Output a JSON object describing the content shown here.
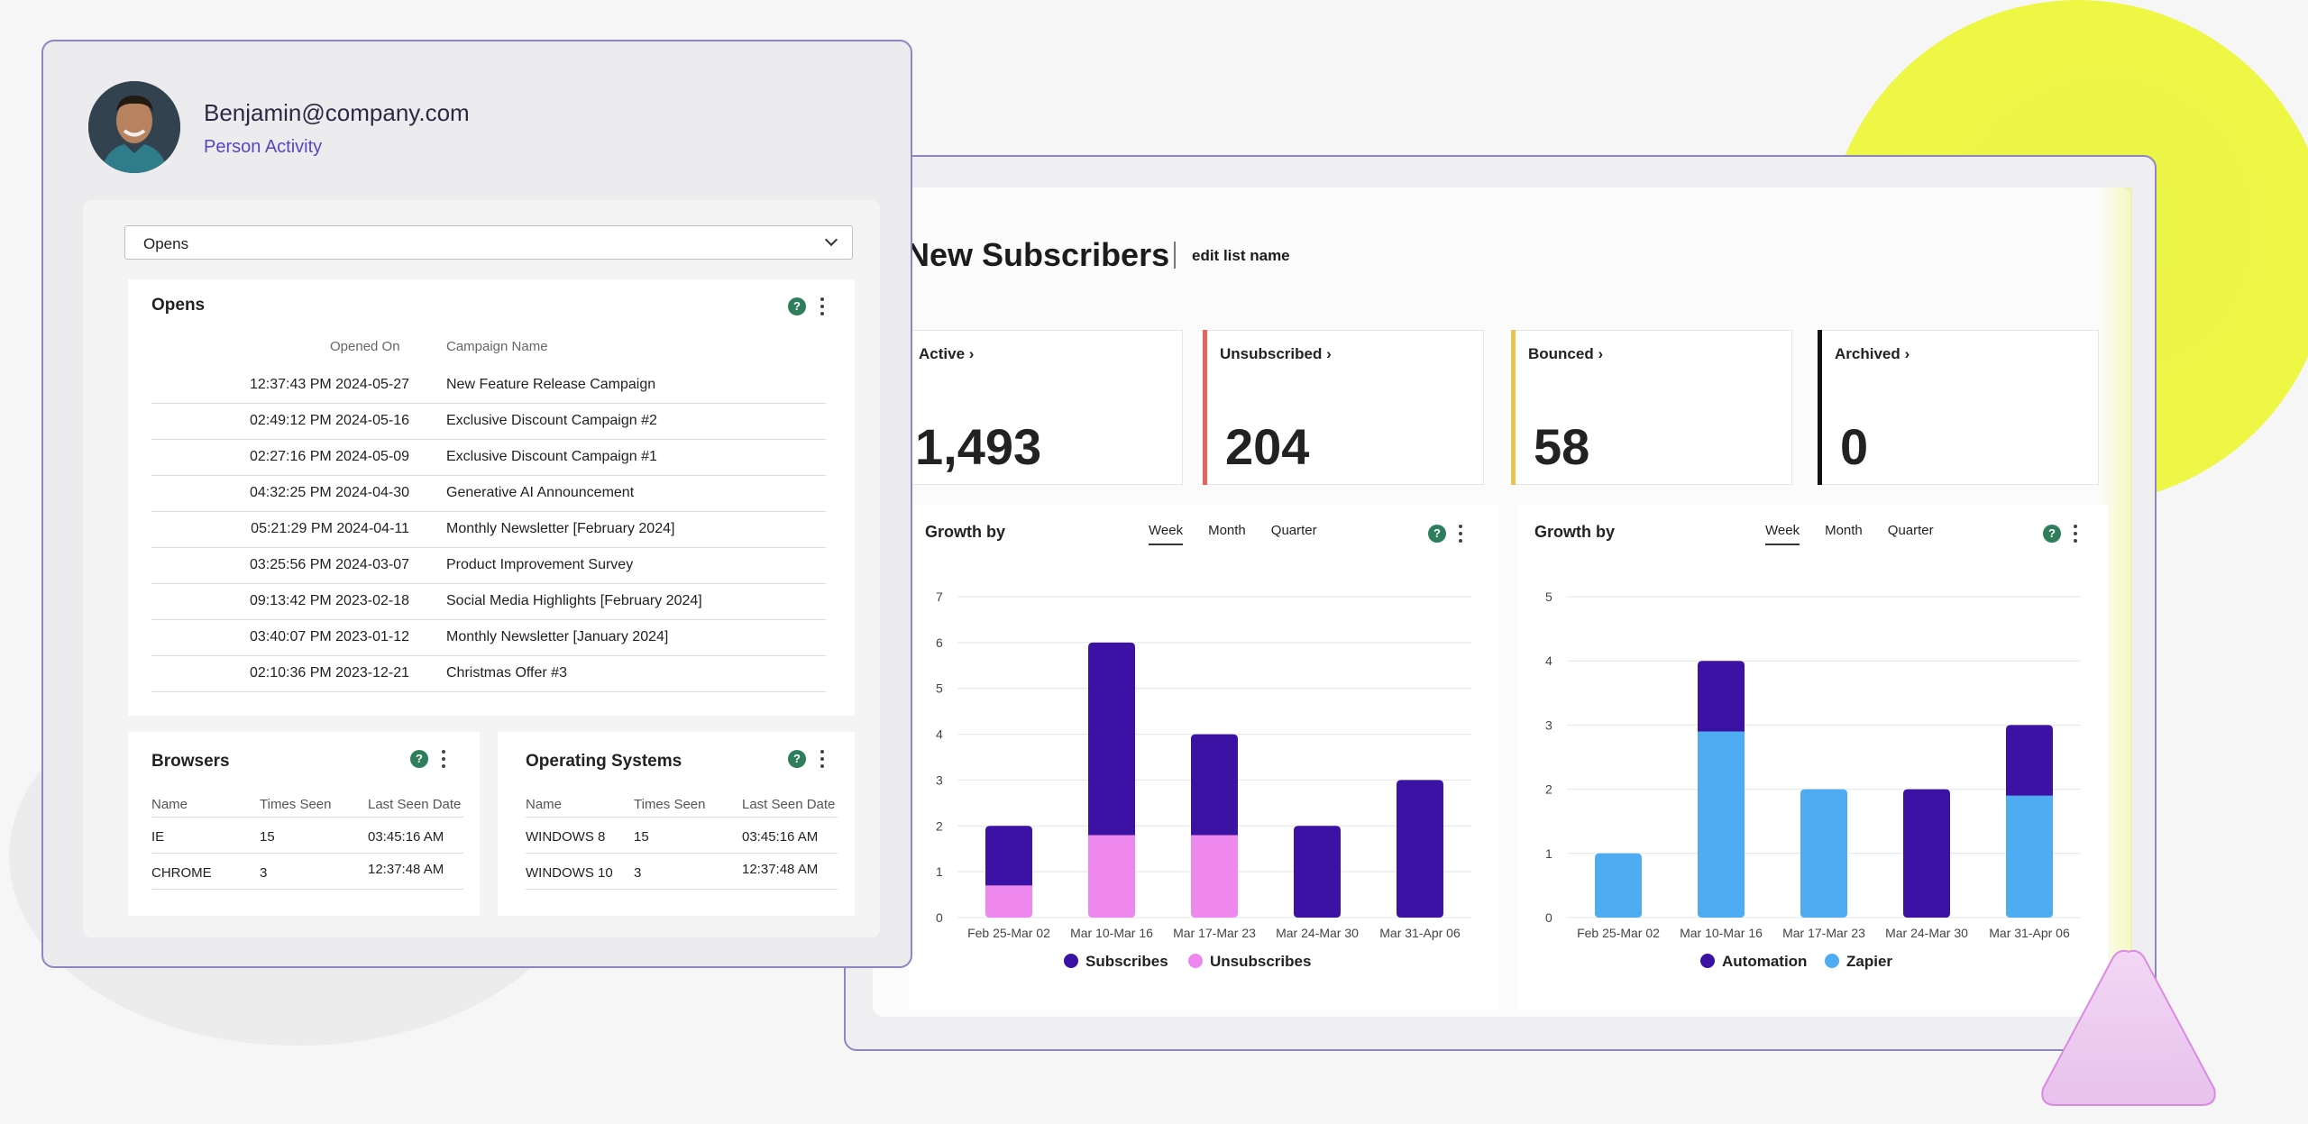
{
  "person": {
    "email": "Benjamin@company.com",
    "subtitle": "Person Activity"
  },
  "filter": {
    "selected": "Opens"
  },
  "opens": {
    "title": "Opens",
    "columns": [
      "Opened On",
      "Campaign Name"
    ],
    "rows": [
      [
        "12:37:43 PM 2024-05-27",
        "New Feature Release Campaign"
      ],
      [
        "02:49:12 PM 2024-05-16",
        "Exclusive Discount Campaign #2"
      ],
      [
        "02:27:16 PM 2024-05-09",
        "Exclusive Discount Campaign #1"
      ],
      [
        "04:32:25 PM 2024-04-30",
        "Generative AI Announcement"
      ],
      [
        "05:21:29 PM 2024-04-11",
        "Monthly Newsletter [February 2024]"
      ],
      [
        "03:25:56 PM 2024-03-07",
        "Product Improvement Survey"
      ],
      [
        "09:13:42 PM 2023-02-18",
        "Social Media Highlights [February 2024]"
      ],
      [
        "03:40:07 PM 2023-01-12",
        "Monthly Newsletter [January 2024]"
      ],
      [
        "02:10:36 PM 2023-12-21",
        "Christmas Offer #3"
      ]
    ]
  },
  "browsers": {
    "title": "Browsers",
    "columns": [
      "Name",
      "Times Seen",
      "Last Seen Date"
    ],
    "rows": [
      [
        "IE",
        "15",
        "03:45:16 AM"
      ],
      [
        "CHROME",
        "3",
        "12:37:48 AM"
      ]
    ]
  },
  "os": {
    "title": "Operating Systems",
    "columns": [
      "Name",
      "Times Seen",
      "Last Seen Date"
    ],
    "rows": [
      [
        "WINDOWS 8",
        "15",
        "03:45:16 AM"
      ],
      [
        "WINDOWS 10",
        "3",
        "12:37:48 AM"
      ]
    ]
  },
  "list": {
    "title": "New Subscribers",
    "edit_label": "edit list name",
    "stats": [
      {
        "label": "Active",
        "value": "1,493",
        "color": ""
      },
      {
        "label": "Unsubscribed",
        "value": "204",
        "color": "#e0675d"
      },
      {
        "label": "Bounced",
        "value": "58",
        "color": "#e8c452"
      },
      {
        "label": "Archived",
        "value": "0",
        "color": "#111111"
      }
    ]
  },
  "colors": {
    "subscribes": "#3b12a3",
    "unsubscribes": "#ee88ee",
    "automation": "#3b12a3",
    "zapier": "#4eacf2",
    "help": "#2e7d5b"
  },
  "chart_data": [
    {
      "type": "bar",
      "title": "Growth by",
      "tabs": [
        "Week",
        "Month",
        "Quarter"
      ],
      "active_tab": "Week",
      "stacked": true,
      "categories": [
        "Feb 25-Mar 02",
        "Mar 10-Mar 16",
        "Mar 17-Mar 23",
        "Mar 24-Mar 30",
        "Mar 31-Apr 06"
      ],
      "series": [
        {
          "name": "Unsubscribes",
          "values": [
            0.7,
            1.8,
            1.8,
            0,
            0
          ]
        },
        {
          "name": "Subscribes",
          "values": [
            1.3,
            4.2,
            2.2,
            2,
            3
          ]
        }
      ],
      "legend": [
        "Subscribes",
        "Unsubscribes"
      ],
      "ylim": [
        0,
        7
      ],
      "yticks": [
        0,
        1,
        2,
        3,
        4,
        5,
        6,
        7
      ],
      "grid": true,
      "legend_position": "bottom"
    },
    {
      "type": "bar",
      "title": "Growth by",
      "tabs": [
        "Week",
        "Month",
        "Quarter"
      ],
      "active_tab": "Week",
      "stacked": true,
      "categories": [
        "Feb 25-Mar 02",
        "Mar 10-Mar 16",
        "Mar 17-Mar 23",
        "Mar 24-Mar 30",
        "Mar 31-Apr 06"
      ],
      "series": [
        {
          "name": "Zapier",
          "values": [
            1,
            2.9,
            2,
            0,
            1.9
          ]
        },
        {
          "name": "Automation",
          "values": [
            0,
            1.1,
            0,
            2,
            1.1
          ]
        }
      ],
      "legend": [
        "Automation",
        "Zapier"
      ],
      "ylim": [
        0,
        5
      ],
      "yticks": [
        0,
        1,
        2,
        3,
        4,
        5
      ],
      "grid": true,
      "legend_position": "bottom"
    }
  ]
}
